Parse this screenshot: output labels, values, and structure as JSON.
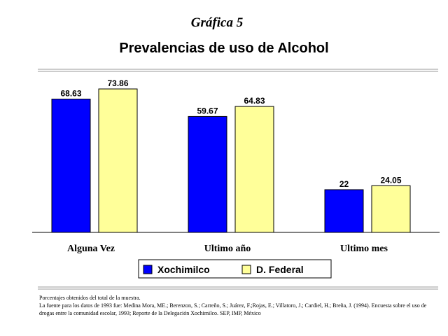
{
  "header": {
    "kicker": "Gráfica 5",
    "title": "Prevalencias de uso de Alcohol"
  },
  "chart_data": {
    "type": "bar",
    "categories": [
      "Alguna Vez",
      "Ultimo año",
      "Ultimo mes"
    ],
    "series": [
      {
        "name": "Xochimilco",
        "values": [
          68.63,
          59.67,
          22
        ],
        "labels": [
          "68.63",
          "59.67",
          "22"
        ],
        "color": "#0000ff"
      },
      {
        "name": "D. Federal",
        "values": [
          73.86,
          64.83,
          24.05
        ],
        "labels": [
          "73.86",
          "64.83",
          "24.05"
        ],
        "color": "#ffff99"
      }
    ],
    "ylim": [
      0,
      80
    ],
    "grid": false,
    "legend": "bottom"
  },
  "footnote": {
    "line1": "Porcentajes obtenidos del total de la muestra.",
    "line2": "La fuente para los datos de 1993 fue: Medina Mora, ME.; Berenzon, S.; Carreño, S.; Juárez, F.;Rojas, E.; Villatoro, J.; Cardiel, H.; Breña, J. (1994). Encuesta sobre el uso de drogas entre la comunidad escolar, 1993; Reporte de la Delegación Xochimilco. SEP, IMP, México"
  }
}
